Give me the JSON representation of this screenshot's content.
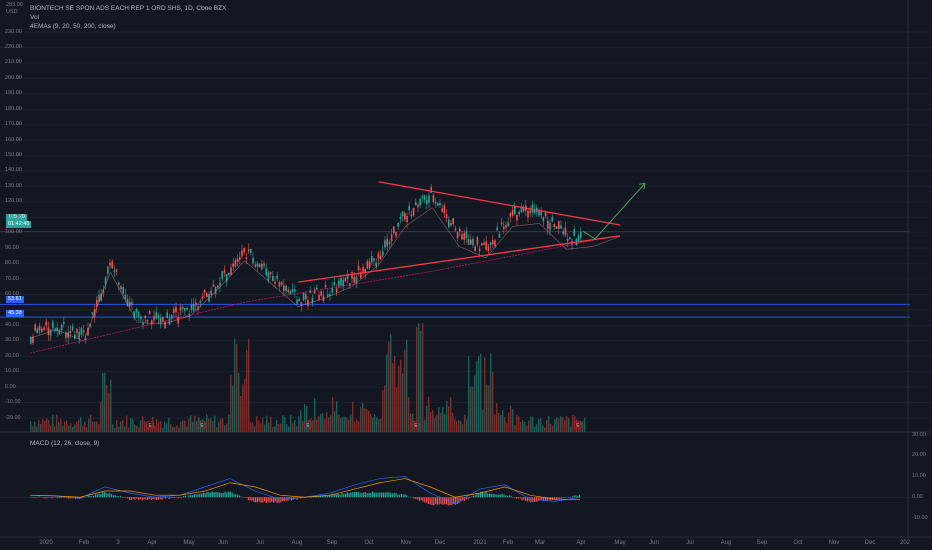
{
  "header": {
    "title": "BIONTECH SE SPON ADS EACH REP 1 ORD SHS, 1D, Cboe BZX",
    "vol_label": "Vol",
    "ema_label": "4EMAs (9, 20, 50, 200, close)",
    "macd_label": "MACD (12, 26, close, 9)",
    "top_left": [
      "283.00",
      "USD"
    ]
  },
  "badges": [
    {
      "text": "105.20",
      "color": "#26a69a"
    },
    {
      "text": "01:42:45",
      "color": "#26a69a"
    },
    {
      "text": "53.61",
      "color": "#2962ff"
    },
    {
      "text": "50.00",
      "color": "#2962ff"
    },
    {
      "text": "45.38",
      "color": "#2962ff"
    }
  ],
  "colors": {
    "up": "#26a69a",
    "down": "#ef5350",
    "trendline": "#f23645",
    "projection": "#4caf50",
    "level_line": "#2962ff",
    "macd": "#2962ff",
    "signal": "#ff9800"
  },
  "chart_data": [
    {
      "type": "line",
      "subtype": "candlestick-price",
      "title": "BIONTECH SE SPON ADS EACH REP 1 ORD SHS, 1D, Cboe BZX",
      "y_axis_ticks": [
        "230.00",
        "220.00",
        "210.00",
        "200.00",
        "190.00",
        "180.00",
        "170.00",
        "160.00",
        "150.00",
        "140.00",
        "130.00",
        "120.00",
        "110.00",
        "100.00",
        "90.00",
        "80.00",
        "70.00",
        "60.00",
        "50.00",
        "40.00",
        "30.00",
        "20.00",
        "10.00",
        "0.00",
        "-10.00",
        "-20.00"
      ],
      "ylim": [
        -25,
        235
      ],
      "x_axis_ticks": [
        "2020",
        "Feb",
        "3",
        "Apr",
        "May",
        "Jun",
        "Jul",
        "Aug",
        "Sep",
        "Oct",
        "Nov",
        "Dec",
        "2021",
        "Feb",
        "Mar",
        "Apr",
        "May",
        "Jun",
        "Jul",
        "Aug",
        "Sep",
        "Oct",
        "Nov",
        "Dec",
        "202"
      ],
      "x": [
        "2020-01",
        "2020-02",
        "2020-03",
        "2020-03b",
        "2020-04",
        "2020-05",
        "2020-06",
        "2020-07",
        "2020-07b",
        "2020-08",
        "2020-09",
        "2020-09b",
        "2020-10",
        "2020-11",
        "2020-11b",
        "2020-12",
        "2020-12b",
        "2021-01",
        "2021-01b",
        "2021-02",
        "2021-03",
        "2021-03b",
        "2021-04"
      ],
      "close": [
        34,
        40,
        32,
        80,
        45,
        44,
        50,
        68,
        88,
        72,
        56,
        62,
        70,
        85,
        112,
        125,
        98,
        90,
        112,
        114,
        96,
        98,
        105
      ],
      "current_price": 105.2,
      "countdown": "01:42:45",
      "levels": [
        53.61,
        45.38
      ],
      "trendlines": [
        {
          "name": "upper",
          "from": [
            "2020-11",
            133
          ],
          "to": [
            "2021-04",
            105
          ]
        },
        {
          "name": "lower",
          "from": [
            "2020-09",
            68
          ],
          "to": [
            "2021-04",
            98
          ]
        }
      ],
      "projection": {
        "from": [
          "2021-04",
          101
        ],
        "via": [
          "2021-04",
          96
        ],
        "to": [
          "2021-05",
          132
        ]
      },
      "earnings_markers": [
        "E",
        "E",
        "E",
        "E",
        "E"
      ]
    },
    {
      "type": "bar",
      "subtype": "volume",
      "values_up_down": "mixed",
      "peaks": [
        {
          "x": "2020-11",
          "relative": 1.0
        },
        {
          "x": "2020-07",
          "relative": 0.95
        },
        {
          "x": "2020-03",
          "relative": 0.62
        }
      ]
    },
    {
      "type": "line",
      "title": "MACD (12, 26, close, 9)",
      "y_axis_ticks": [
        "30.00",
        "20.00",
        "10.00",
        "0.00",
        "-10.00"
      ],
      "ylim": [
        -14,
        33
      ],
      "series": [
        {
          "name": "MACD",
          "values": [
            1,
            0.5,
            -0.5,
            5,
            2,
            0,
            1,
            5,
            9,
            3,
            -1,
            0,
            2,
            6,
            9,
            10,
            2,
            -3,
            4,
            6,
            -1,
            -2,
            0
          ]
        },
        {
          "name": "Signal",
          "values": [
            1,
            0.7,
            0,
            3,
            3,
            1,
            1,
            3,
            7,
            5,
            1,
            0,
            1,
            4,
            7,
            9,
            5,
            0,
            2,
            5,
            1,
            -1,
            -1
          ]
        }
      ]
    }
  ]
}
